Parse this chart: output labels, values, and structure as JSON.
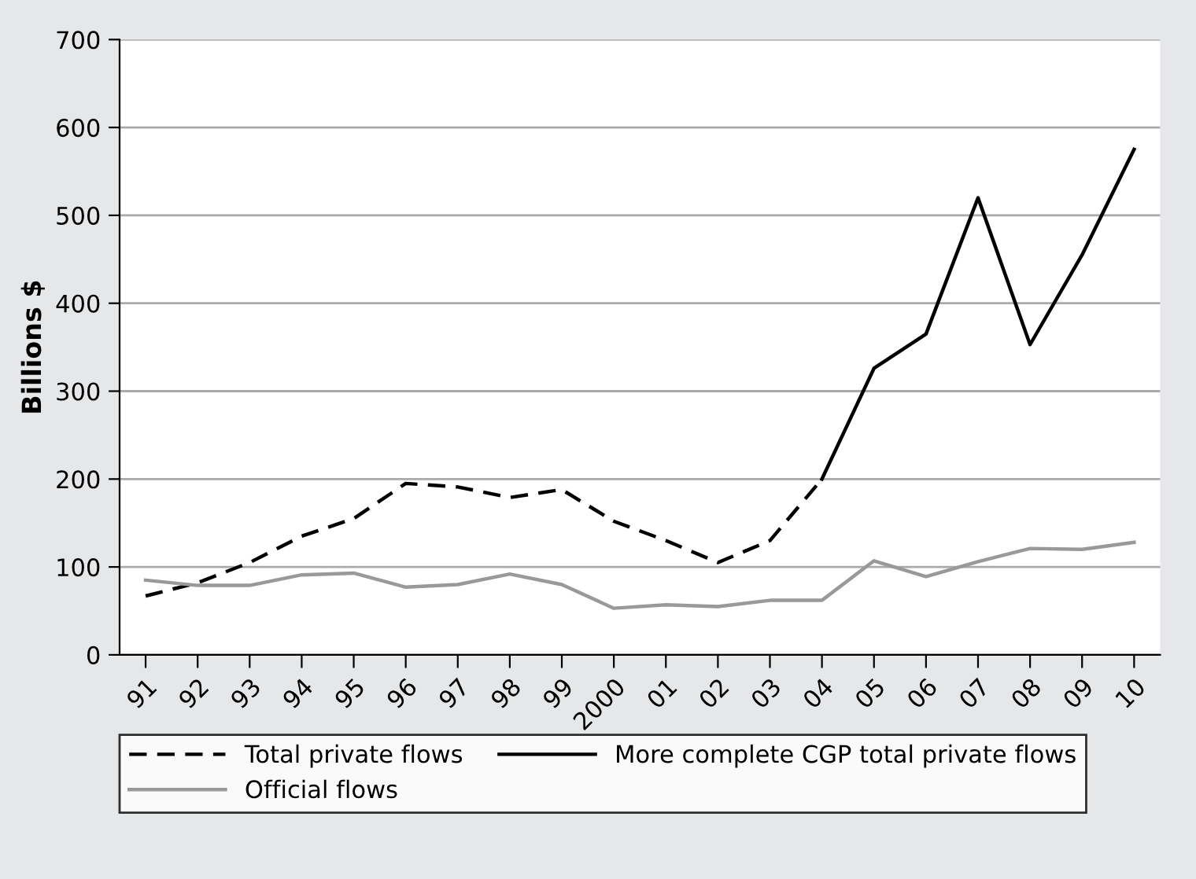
{
  "chart_data": {
    "type": "line",
    "ylabel": "Billions $",
    "categories": [
      "91",
      "92",
      "93",
      "94",
      "95",
      "96",
      "97",
      "98",
      "99",
      "2000",
      "01",
      "02",
      "03",
      "04",
      "05",
      "06",
      "07",
      "08",
      "09",
      "10"
    ],
    "series": [
      {
        "name": "Total private flows",
        "color": "#000000",
        "line_style": "dashed",
        "values": [
          67,
          82,
          105,
          135,
          155,
          195,
          191,
          179,
          188,
          152,
          130,
          105,
          130,
          200,
          null,
          null,
          null,
          null,
          null,
          null
        ]
      },
      {
        "name": "More complete CGP total private flows",
        "color": "#000000",
        "line_style": "solid",
        "values": [
          null,
          null,
          null,
          null,
          null,
          null,
          null,
          null,
          null,
          null,
          null,
          null,
          null,
          200,
          326,
          365,
          520,
          353,
          455,
          575
        ]
      },
      {
        "name": "Official flows",
        "color": "#999999",
        "line_style": "solid",
        "values": [
          85,
          79,
          79,
          91,
          93,
          77,
          80,
          92,
          80,
          53,
          57,
          55,
          62,
          62,
          107,
          89,
          106,
          121,
          120,
          128
        ]
      }
    ],
    "ylim": [
      0,
      700
    ],
    "yticks": [
      0,
      100,
      200,
      300,
      400,
      500,
      600,
      700
    ],
    "grid": "y",
    "legend": "bottom"
  }
}
